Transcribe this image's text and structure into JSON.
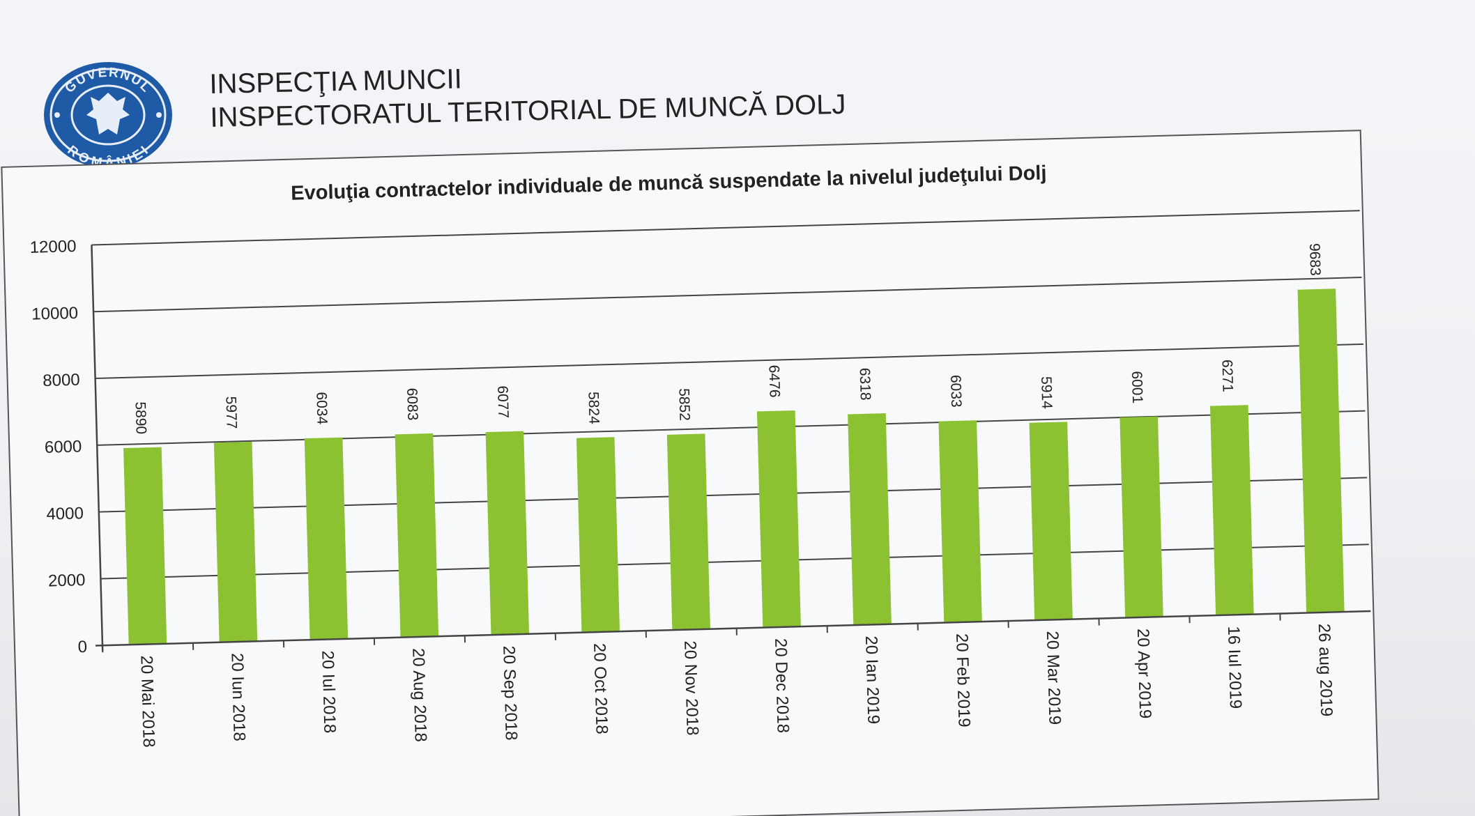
{
  "header": {
    "seal_text_top": "GUVERNUL",
    "seal_text_bottom": "ROMÂNIEI",
    "line1": "INSPECŢIA MUNCII",
    "line2": "INSPECTORATUL TERITORIAL DE MUNCĂ DOLJ"
  },
  "colors": {
    "bar": "#8cc232",
    "seal": "#1f5aa6",
    "grid": "#444444"
  },
  "chart_data": {
    "type": "bar",
    "title": "Evoluţia contractelor individuale de muncă suspendate la nivelul judeţului Dolj",
    "xlabel": "",
    "ylabel": "",
    "ylim": [
      0,
      12000
    ],
    "yticks": [
      "0",
      "2000",
      "4000",
      "6000",
      "8000",
      "10000",
      "12000"
    ],
    "grid": true,
    "categories": [
      "20 Mai 2018",
      "20 Iun 2018",
      "20 Iul 2018",
      "20 Aug 2018",
      "20 Sep 2018",
      "20 Oct 2018",
      "20 Nov 2018",
      "20 Dec 2018",
      "20 Ian 2019",
      "20 Feb 2019",
      "20 Mar 2019",
      "20 Apr 2019",
      "16 Iul 2019",
      "26 aug 2019"
    ],
    "values": [
      5890,
      5977,
      6034,
      6083,
      6077,
      5824,
      5852,
      6476,
      6318,
      6033,
      5914,
      6001,
      6271,
      9683
    ],
    "data_labels": [
      "5890",
      "5977",
      "6034",
      "6083",
      "6077",
      "5824",
      "5852",
      "6476",
      "6318",
      "6033",
      "5914",
      "6001",
      "6271",
      "9683"
    ]
  }
}
